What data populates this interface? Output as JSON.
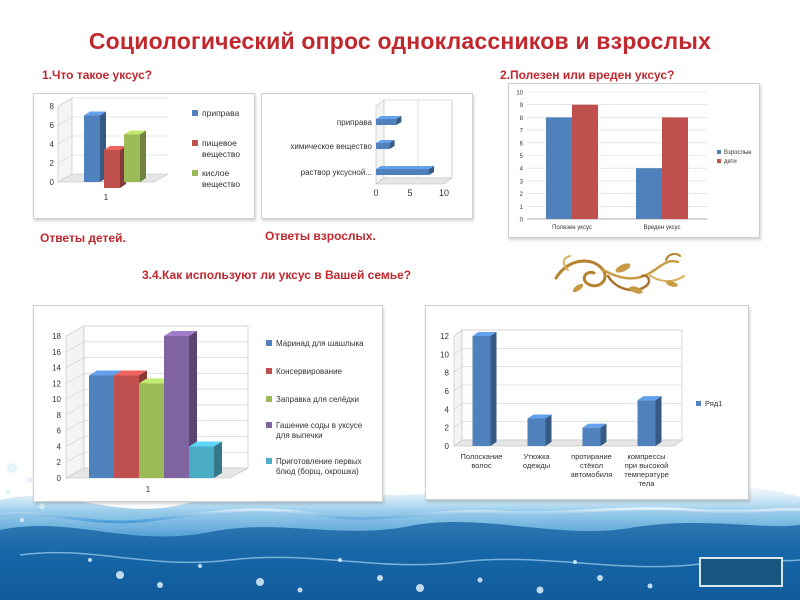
{
  "page": {
    "title": "Социологический  опрос одноклассников  и  взрослых"
  },
  "questions": {
    "q1": "1.Что такое уксус?",
    "q2": "2.Полезен или вреден уксус?",
    "q34": "3.4.Как используют ли уксус в Вашей семье?"
  },
  "captions": {
    "children": "Ответы детей.",
    "adults": "Ответы  взрослых."
  },
  "colors": {
    "title": "#c0282e",
    "blue": "#4f81bd",
    "red": "#c0504d",
    "green": "#9bbb59",
    "purple": "#8064a2",
    "cyan": "#4bacc6",
    "nav": "#17567f"
  },
  "icons": {
    "ornament": "gold-flourish-ornament",
    "nav": "next-slide-button"
  },
  "chart_data": [
    {
      "id": "chart1",
      "type": "bar",
      "categories": [
        "1"
      ],
      "series": [
        {
          "name": "приправа",
          "values": [
            7
          ]
        },
        {
          "name": "пищевое вещество",
          "values": [
            4
          ]
        },
        {
          "name": "кислое вещество",
          "values": [
            5
          ]
        }
      ],
      "yticks": [
        "0",
        "2",
        "4",
        "6",
        "8"
      ],
      "ylim": [
        0,
        8
      ],
      "legend": "right",
      "grid": true
    },
    {
      "id": "chart2",
      "type": "bar",
      "orientation": "horizontal",
      "categories": [
        "приправа",
        "химическое вещество",
        "раствор уксусной..."
      ],
      "series": [
        {
          "name": "",
          "values": [
            3,
            2,
            10
          ]
        }
      ],
      "xticks": [
        "0",
        "5",
        "10"
      ],
      "xlim": [
        0,
        10
      ],
      "legend": "none",
      "grid": true
    },
    {
      "id": "chart3",
      "type": "bar",
      "categories": [
        "Полезен уксус",
        "Вреден уксус"
      ],
      "series": [
        {
          "name": "Взрослые",
          "values": [
            8,
            4
          ]
        },
        {
          "name": "дети",
          "values": [
            9,
            8
          ]
        }
      ],
      "yticks": [
        "0",
        "1",
        "2",
        "3",
        "4",
        "5",
        "6",
        "7",
        "8",
        "9",
        "10"
      ],
      "ylim": [
        0,
        10
      ],
      "legend": "right",
      "grid": true
    },
    {
      "id": "chart4",
      "type": "bar",
      "categories": [
        "1"
      ],
      "series": [
        {
          "name": "Маринад для шашлыка",
          "values": [
            13
          ]
        },
        {
          "name": "Консервирование",
          "values": [
            13
          ]
        },
        {
          "name": "Заправка для селёдки",
          "values": [
            12
          ]
        },
        {
          "name": "Гашение соды в уксусе для выпечки",
          "values": [
            18
          ]
        },
        {
          "name": "Приготовление первых блюд (борщ, окрошка)",
          "values": [
            4
          ]
        }
      ],
      "yticks": [
        "0",
        "2",
        "4",
        "6",
        "8",
        "10",
        "12",
        "14",
        "16",
        "18"
      ],
      "ylim": [
        0,
        18
      ],
      "legend": "right",
      "grid": true
    },
    {
      "id": "chart5",
      "type": "bar",
      "categories": [
        "Полоскание волос",
        "Утюжка одежды",
        "протирание стёкол автомобиля",
        "компрессы при высокой температуре тела"
      ],
      "series": [
        {
          "name": "Ряд1",
          "values": [
            12,
            3,
            2,
            5
          ]
        }
      ],
      "yticks": [
        "0",
        "2",
        "4",
        "6",
        "8",
        "10",
        "12"
      ],
      "ylim": [
        0,
        12
      ],
      "legend": "right",
      "grid": true
    }
  ]
}
